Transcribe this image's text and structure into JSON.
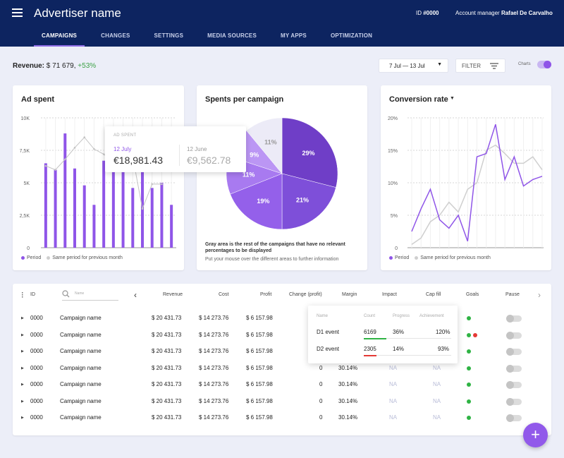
{
  "header": {
    "title": "Advertiser name",
    "id_label": "ID",
    "id_value": "#0000",
    "manager_label": "Account manager",
    "manager_name": "Rafael De Carvalho"
  },
  "tabs": [
    "CAMPAIGNS",
    "CHANGES",
    "SETTINGS",
    "MEDIA SOURCES",
    "MY APPS",
    "OPTIMIZATION"
  ],
  "revenue": {
    "label": "Revenue:",
    "value": "$ 71 679,",
    "delta": "+53%"
  },
  "date_range": "7 Jul — 13 Jul",
  "filter_label": "FILTER",
  "charts_toggle": {
    "label": "Charts",
    "on": true
  },
  "cards": {
    "ad_spent": {
      "title": "Ad spent",
      "legend_period": "Period",
      "legend_prev": "Same period for previous month"
    },
    "spents": {
      "title": "Spents per campaign",
      "note": "Gray area is the rest of the campaigns that have no relevant percentages to be displayed",
      "hint": "Put your mouse over the different areas to further information"
    },
    "conversion": {
      "title": "Conversion rate",
      "legend_period": "Period",
      "legend_prev": "Same period for previous month"
    }
  },
  "tooltip": {
    "header": "AD SPENT",
    "label1": "12 July",
    "value1": "€18,981.43",
    "label2": "12 June",
    "value2": "€9,562.78"
  },
  "chart_data": [
    {
      "type": "bar",
      "title": "Ad spent",
      "yticks": [
        "0",
        "2,5K",
        "5K",
        "7,5K",
        "10K"
      ],
      "ylim": [
        0,
        10000
      ],
      "series": [
        {
          "name": "Period",
          "values": [
            6500,
            6000,
            8800,
            6100,
            4800,
            3300,
            6700,
            6500,
            5900,
            4600,
            6300,
            4600,
            5000,
            3300
          ]
        },
        {
          "name": "Same period for previous month",
          "values": [
            6300,
            6000,
            6800,
            7700,
            8500,
            7600,
            7200,
            6600,
            5900,
            7000,
            3000,
            4900,
            4900,
            null
          ]
        }
      ]
    },
    {
      "type": "pie",
      "title": "Spents per campaign",
      "slices": [
        {
          "label": "29%",
          "value": 29,
          "color": "#6f3ec7"
        },
        {
          "label": "21%",
          "value": 21,
          "color": "#7e4fd9"
        },
        {
          "label": "19%",
          "value": 19,
          "color": "#9460ea"
        },
        {
          "label": "11%",
          "value": 11,
          "color": "#a87af0"
        },
        {
          "label": "9%",
          "value": 9,
          "color": "#bb96f4"
        },
        {
          "label": "11%",
          "value": 11,
          "color": "#ecebf7"
        }
      ]
    },
    {
      "type": "line",
      "title": "Conversion rate",
      "yticks": [
        "0",
        "5%",
        "10%",
        "15%",
        "20%"
      ],
      "ylim": [
        0,
        20
      ],
      "series": [
        {
          "name": "Period",
          "values": [
            2.5,
            6,
            9,
            4.3,
            3,
            5,
            1,
            14,
            14.5,
            19,
            10.5,
            14,
            9.5,
            10.5,
            11
          ]
        },
        {
          "name": "Same period for previous month",
          "values": [
            0.5,
            1.5,
            4,
            5,
            7,
            5.5,
            9,
            10,
            15,
            15.8,
            14.5,
            13,
            13,
            14,
            12
          ]
        }
      ]
    }
  ],
  "table": {
    "columns": [
      "ID",
      "Revenue",
      "Cost",
      "Profit",
      "Change (profit)",
      "Margin",
      "Impact",
      "Cap fill",
      "Goals",
      "Pause"
    ],
    "search_placeholder": "Name",
    "rows": [
      {
        "id": "0000",
        "name": "Campaign name",
        "revenue": "$ 20 431.73",
        "cost": "$ 14 273.76",
        "profit": "$ 6 157.98",
        "change": "",
        "margin": "",
        "impact": "",
        "cap": "",
        "goals": [
          "green"
        ]
      },
      {
        "id": "0000",
        "name": "Campaign name",
        "revenue": "$ 20 431.73",
        "cost": "$ 14 273.76",
        "profit": "$ 6 157.98",
        "change": "",
        "margin": "",
        "impact": "",
        "cap": "",
        "goals": [
          "green",
          "red"
        ]
      },
      {
        "id": "0000",
        "name": "Campaign name",
        "revenue": "$ 20 431.73",
        "cost": "$ 14 273.76",
        "profit": "$ 6 157.98",
        "change": "",
        "margin": "",
        "impact": "",
        "cap": "",
        "goals": [
          "green"
        ]
      },
      {
        "id": "0000",
        "name": "Campaign name",
        "revenue": "$ 20 431.73",
        "cost": "$ 14 273.76",
        "profit": "$ 6 157.98",
        "change": "0",
        "margin": "30.14%",
        "impact": "NA",
        "cap": "NA",
        "goals": [
          "green"
        ]
      },
      {
        "id": "0000",
        "name": "Campaign name",
        "revenue": "$ 20 431.73",
        "cost": "$ 14 273.76",
        "profit": "$ 6 157.98",
        "change": "0",
        "margin": "30.14%",
        "impact": "NA",
        "cap": "NA",
        "goals": [
          "green"
        ]
      },
      {
        "id": "0000",
        "name": "Campaign name",
        "revenue": "$ 20 431.73",
        "cost": "$ 14 273.76",
        "profit": "$ 6 157.98",
        "change": "0",
        "margin": "30.14%",
        "impact": "NA",
        "cap": "NA",
        "goals": [
          "green"
        ]
      },
      {
        "id": "0000",
        "name": "Campaign name",
        "revenue": "$ 20 431.73",
        "cost": "$ 14 273.76",
        "profit": "$ 6 157.98",
        "change": "0",
        "margin": "30.14%",
        "impact": "NA",
        "cap": "NA",
        "goals": [
          "green"
        ]
      }
    ]
  },
  "goals_popup": {
    "headers": [
      "Name",
      "Count",
      "Progress",
      "Achievement"
    ],
    "rows": [
      {
        "name": "D1 event",
        "count": "6169",
        "progress": "36%",
        "achievement": "120%",
        "status": "green"
      },
      {
        "name": "D2 event",
        "count": "2305",
        "progress": "14%",
        "achievement": "93%",
        "status": "red"
      }
    ]
  },
  "fab_label": "+"
}
